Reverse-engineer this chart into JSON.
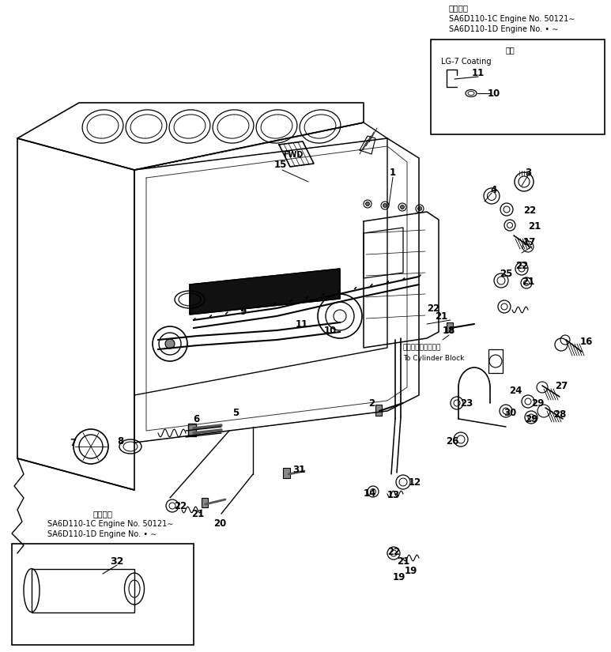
{
  "bg": "#ffffff",
  "top_right_header_jp": "通用号機",
  "top_right_line1": "SA6D110-1C Engine No. 50121∼",
  "top_right_line2": "SA6D110-1D Engine No. • ∼",
  "top_right_sub_jp": "塗布",
  "top_right_sub_en": "LG-7 Coating",
  "bot_left_header_jp": "通用号機",
  "bot_left_line1": "SA6D110-1C Engine No. 50121∼",
  "bot_left_line2": "SA6D110-1D Engine No. • ∼",
  "cylinder_jp": "シリンダブロックへ",
  "cylinder_en": "To Cylinder Block",
  "fwd_text": "FWD"
}
